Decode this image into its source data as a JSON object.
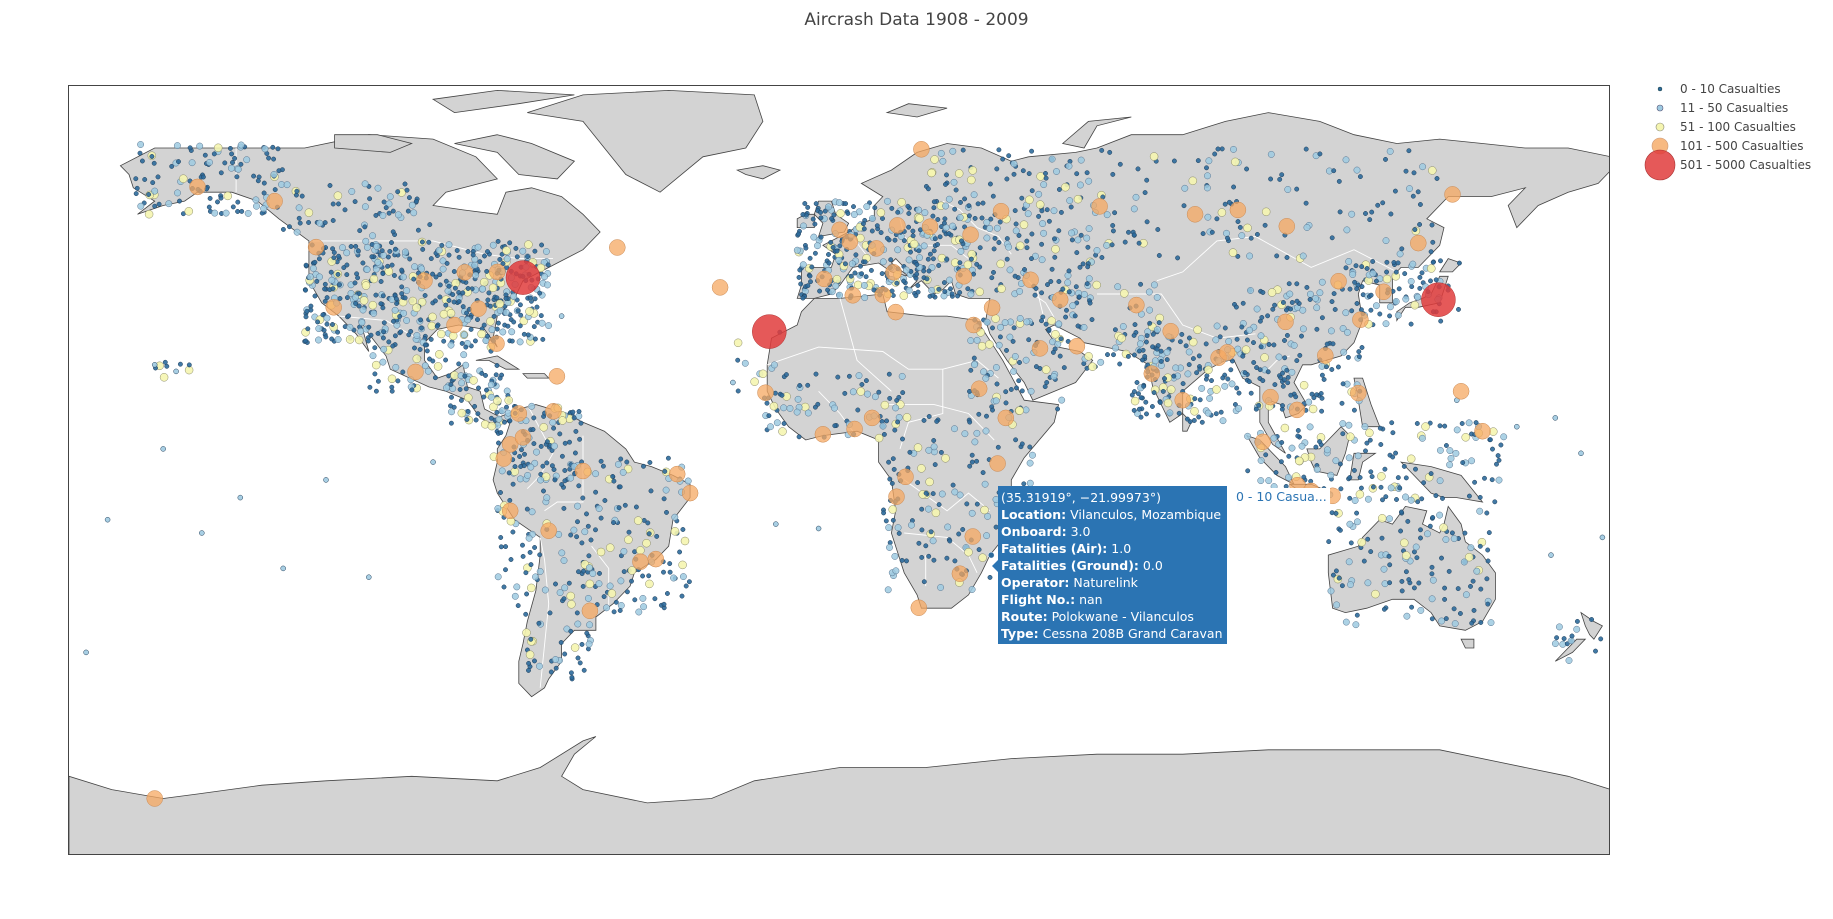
{
  "title": "Aircrash Data 1908 - 2009",
  "legend": [
    {
      "label": "0 - 10 Casualties",
      "color": "#2c6a9b",
      "icon": "circle-marker"
    },
    {
      "label": "11 - 50 Casualties",
      "color": "#9ecae1",
      "icon": "circle-marker"
    },
    {
      "label": "51 - 100 Casualties",
      "color": "#f5f5b0",
      "icon": "circle-marker"
    },
    {
      "label": "101 - 500 Casualties",
      "color": "#f5a862",
      "icon": "circle-marker"
    },
    {
      "label": "501 - 5000 Casualties",
      "color": "#e03c3c",
      "icon": "circle-marker"
    }
  ],
  "tooltip": {
    "coords": "(35.31919°, −21.99973°)",
    "rows": [
      {
        "key": "Location:",
        "value": "Vilanculos, Mozambique"
      },
      {
        "key": "Onboard:",
        "value": "3.0"
      },
      {
        "key": "Fatalities (Air):",
        "value": "1.0"
      },
      {
        "key": "Fatalities (Ground):",
        "value": "0.0"
      },
      {
        "key": "Operator:",
        "value": "Naturelink"
      },
      {
        "key": "Flight No.:",
        "value": "nan"
      },
      {
        "key": "Route:",
        "value": "Polokwane - Vilanculos"
      },
      {
        "key": "Type:",
        "value": "Cessna 208B Grand Caravan"
      }
    ],
    "series_label": "0 - 10 Casua..."
  },
  "colors": {
    "land": "#d3d3d3",
    "border": "#ffffff",
    "coast": "#444444"
  },
  "markers": {
    "large_red": [
      {
        "lon": -74.0,
        "lat": 40.7
      },
      {
        "lon": -16.5,
        "lat": 28.5
      },
      {
        "lon": 139.7,
        "lat": 35.7
      }
    ],
    "orange": [
      {
        "lon": -150.0,
        "lat": 61.2
      },
      {
        "lon": -132.0,
        "lat": 58.0
      },
      {
        "lon": -118.2,
        "lat": 34.0
      },
      {
        "lon": -122.3,
        "lat": 47.6
      },
      {
        "lon": -97.0,
        "lat": 40.0
      },
      {
        "lon": -87.6,
        "lat": 41.9
      },
      {
        "lon": -80.0,
        "lat": 42.0
      },
      {
        "lon": -90.0,
        "lat": 30.0
      },
      {
        "lon": -84.4,
        "lat": 33.7
      },
      {
        "lon": -80.2,
        "lat": 25.8
      },
      {
        "lon": -99.1,
        "lat": 19.4
      },
      {
        "lon": -66.1,
        "lat": 18.4
      },
      {
        "lon": -75.0,
        "lat": 10.0
      },
      {
        "lon": -77.0,
        "lat": 3.0
      },
      {
        "lon": -74.0,
        "lat": 4.6
      },
      {
        "lon": -78.5,
        "lat": -0.2
      },
      {
        "lon": -66.9,
        "lat": 10.5
      },
      {
        "lon": -77.0,
        "lat": -12.0
      },
      {
        "lon": -68.0,
        "lat": -16.5
      },
      {
        "lon": -60.0,
        "lat": -3.0
      },
      {
        "lon": -46.6,
        "lat": -23.5
      },
      {
        "lon": -58.4,
        "lat": -34.6
      },
      {
        "lon": -43.0,
        "lat": -22.9
      },
      {
        "lon": -35.0,
        "lat": -8.0
      },
      {
        "lon": -38.0,
        "lat": -3.7
      },
      {
        "lon": -52.0,
        "lat": 47.5
      },
      {
        "lon": -28.0,
        "lat": 38.5
      },
      {
        "lon": -0.1,
        "lat": 51.5
      },
      {
        "lon": 2.3,
        "lat": 48.8
      },
      {
        "lon": -3.7,
        "lat": 40.4
      },
      {
        "lon": 8.5,
        "lat": 47.3
      },
      {
        "lon": 12.5,
        "lat": 41.9
      },
      {
        "lon": 13.4,
        "lat": 52.5
      },
      {
        "lon": 21.0,
        "lat": 52.2
      },
      {
        "lon": 30.5,
        "lat": 50.4
      },
      {
        "lon": 37.6,
        "lat": 55.7
      },
      {
        "lon": 28.9,
        "lat": 41.0
      },
      {
        "lon": 44.5,
        "lat": 40.2
      },
      {
        "lon": 35.5,
        "lat": 33.9
      },
      {
        "lon": 31.2,
        "lat": 30.0
      },
      {
        "lon": 46.7,
        "lat": 24.7
      },
      {
        "lon": 51.4,
        "lat": 35.7
      },
      {
        "lon": 55.3,
        "lat": 25.2
      },
      {
        "lon": 69.2,
        "lat": 34.5
      },
      {
        "lon": 77.2,
        "lat": 28.6
      },
      {
        "lon": 72.8,
        "lat": 19.0
      },
      {
        "lon": 88.4,
        "lat": 22.6
      },
      {
        "lon": 80.0,
        "lat": 13.0
      },
      {
        "lon": 90.4,
        "lat": 23.8
      },
      {
        "lon": 100.5,
        "lat": 13.7
      },
      {
        "lon": 106.7,
        "lat": 10.8
      },
      {
        "lon": 104.0,
        "lat": 30.7
      },
      {
        "lon": 116.4,
        "lat": 39.9
      },
      {
        "lon": 113.3,
        "lat": 23.1
      },
      {
        "lon": 121.5,
        "lat": 31.2
      },
      {
        "lon": 126.9,
        "lat": 37.5
      },
      {
        "lon": 121.0,
        "lat": 14.6
      },
      {
        "lon": 106.8,
        "lat": -6.2
      },
      {
        "lon": 98.7,
        "lat": 3.6
      },
      {
        "lon": 110.0,
        "lat": -7.5
      },
      {
        "lon": 115.0,
        "lat": -8.6
      },
      {
        "lon": 145.0,
        "lat": 15.0
      },
      {
        "lon": 150.0,
        "lat": 6.0
      },
      {
        "lon": 82.9,
        "lat": 55.0
      },
      {
        "lon": 60.6,
        "lat": 56.8
      },
      {
        "lon": 92.9,
        "lat": 56.0
      },
      {
        "lon": 104.3,
        "lat": 52.3
      },
      {
        "lon": 135.0,
        "lat": 48.5
      },
      {
        "lon": 143.0,
        "lat": 59.5
      },
      {
        "lon": 19.0,
        "lat": 69.7
      },
      {
        "lon": -17.4,
        "lat": 14.7
      },
      {
        "lon": -4.0,
        "lat": 5.3
      },
      {
        "lon": 3.4,
        "lat": 6.5
      },
      {
        "lon": 7.5,
        "lat": 9.0
      },
      {
        "lon": 13.2,
        "lat": -8.8
      },
      {
        "lon": 15.3,
        "lat": -4.3
      },
      {
        "lon": 32.5,
        "lat": 15.6
      },
      {
        "lon": 38.7,
        "lat": 9.0
      },
      {
        "lon": 36.8,
        "lat": -1.3
      },
      {
        "lon": 28.0,
        "lat": -26.2
      },
      {
        "lon": 18.4,
        "lat": -33.9
      },
      {
        "lon": 31.0,
        "lat": -17.8
      },
      {
        "lon": 10.0,
        "lat": 36.8
      },
      {
        "lon": 3.0,
        "lat": 36.7
      },
      {
        "lon": 13.0,
        "lat": 32.9
      },
      {
        "lon": -160.0,
        "lat": -77.0
      }
    ]
  }
}
